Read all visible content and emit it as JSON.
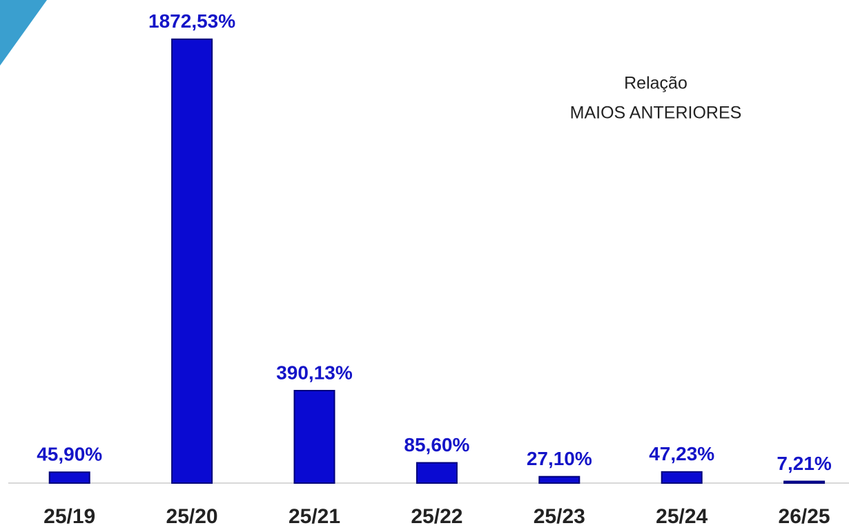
{
  "chart_data": {
    "type": "bar",
    "categories": [
      "25/19",
      "25/20",
      "25/21",
      "25/22",
      "25/23",
      "25/24",
      "26/25"
    ],
    "values": [
      45.9,
      1872.53,
      390.13,
      85.6,
      27.1,
      47.23,
      7.21
    ],
    "value_labels": [
      "45,90%",
      "1872,53%",
      "390,13%",
      "85,60%",
      "27,10%",
      "47,23%",
      "7,21%"
    ],
    "color": "#0a0ad2",
    "ylim": [
      0,
      2038
    ],
    "annotation": [
      "Relação",
      "MAIOS ANTERIORES"
    ]
  }
}
